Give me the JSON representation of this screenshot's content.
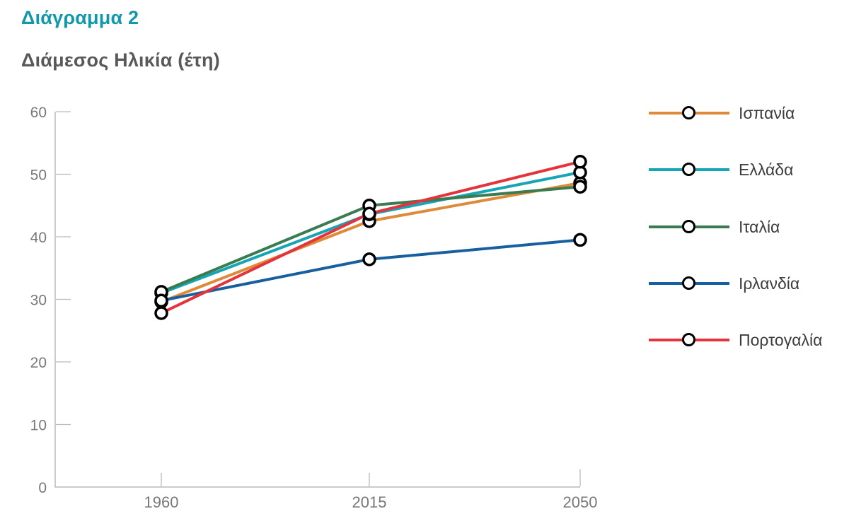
{
  "header": {
    "figure_label": "Διάγραμμα 2",
    "chart_title": "Διάμεσος Ηλικία (έτη)"
  },
  "colors": {
    "figure_label": "#1299A9",
    "chart_title": "#58595B",
    "axis": "#B9BABB",
    "tick_label": "#77787A",
    "legend_label": "#3C3D3F",
    "marker_stroke": "#000000",
    "marker_fill": "#FFFFFF"
  },
  "chart_data": {
    "type": "line",
    "title": "Διάμεσος Ηλικία (έτη)",
    "xlabel": "",
    "ylabel": "",
    "categories": [
      "1960",
      "2015",
      "2050"
    ],
    "series": [
      {
        "name": "Ισπανία",
        "color": "#DE8A38",
        "values": [
          29.6,
          42.5,
          48.6
        ]
      },
      {
        "name": "Ελλάδα",
        "color": "#16A5B4",
        "values": [
          31.0,
          43.6,
          50.3
        ]
      },
      {
        "name": "Ιταλία",
        "color": "#3A7B52",
        "values": [
          31.2,
          45.0,
          48.0
        ]
      },
      {
        "name": "Ιρλανδία",
        "color": "#17609F",
        "values": [
          29.8,
          36.4,
          39.5
        ]
      },
      {
        "name": "Πορτογαλία",
        "color": "#E4333C",
        "values": [
          27.8,
          43.7,
          52.0
        ]
      }
    ],
    "ylim": [
      0,
      60
    ],
    "yticks": [
      0,
      10,
      20,
      30,
      40,
      50,
      60
    ],
    "grid": false,
    "legend_position": "right",
    "marker": "open-circle"
  }
}
